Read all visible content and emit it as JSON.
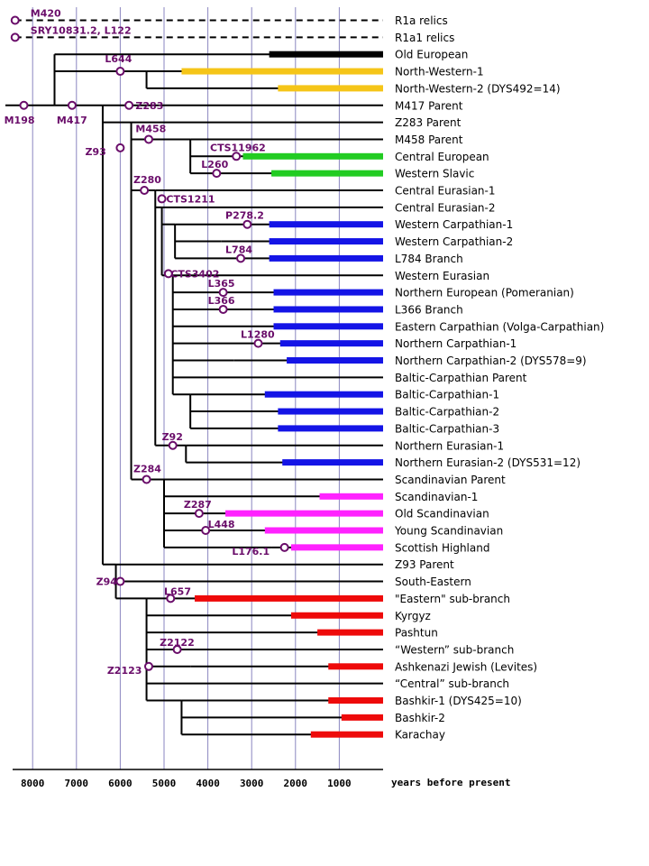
{
  "axis": {
    "unit_label": "years before present",
    "ticks": [
      {
        "value": 8000,
        "label": "8000"
      },
      {
        "value": 7000,
        "label": "7000"
      },
      {
        "value": 6000,
        "label": "6000"
      },
      {
        "value": 5000,
        "label": "5000"
      },
      {
        "value": 4000,
        "label": "4000"
      },
      {
        "value": 3000,
        "label": "3000"
      },
      {
        "value": 2000,
        "label": "2000"
      },
      {
        "value": 1000,
        "label": "1000"
      }
    ]
  },
  "colors": {
    "tree_line": "#000000",
    "mutation_marker": "#6a0d6a",
    "grid": "#8a86c0",
    "black": "#000000",
    "yellow": "#f5c518",
    "green": "#22cc22",
    "blue": "#1414e6",
    "magenta": "#ff22ff",
    "red": "#ee0a0a"
  },
  "branches": [
    {
      "label": "R1a relics",
      "bar": null
    },
    {
      "label": "R1a1 relics",
      "bar": null
    },
    {
      "label": "Old European",
      "bar": {
        "start": 2600,
        "color": "black"
      }
    },
    {
      "label": "North-Western-1",
      "bar": {
        "start": 4600,
        "color": "yellow"
      }
    },
    {
      "label": "North-Western-2 (DYS492=14)",
      "bar": {
        "start": 2400,
        "color": "yellow"
      }
    },
    {
      "label": "M417 Parent",
      "bar": null
    },
    {
      "label": "Z283 Parent",
      "bar": null
    },
    {
      "label": "M458 Parent",
      "bar": null
    },
    {
      "label": "Central European",
      "bar": {
        "start": 3200,
        "color": "green"
      }
    },
    {
      "label": "Western Slavic",
      "bar": {
        "start": 2550,
        "color": "green"
      }
    },
    {
      "label": "Central Eurasian-1",
      "bar": null
    },
    {
      "label": "Central Eurasian-2",
      "bar": null
    },
    {
      "label": "Western Carpathian-1",
      "bar": {
        "start": 2600,
        "color": "blue"
      }
    },
    {
      "label": "Western Carpathian-2",
      "bar": {
        "start": 2600,
        "color": "blue"
      }
    },
    {
      "label": "L784 Branch",
      "bar": {
        "start": 2600,
        "color": "blue"
      }
    },
    {
      "label": "Western Eurasian",
      "bar": null
    },
    {
      "label": "Northern European (Pomeranian)",
      "bar": {
        "start": 2500,
        "color": "blue"
      }
    },
    {
      "label": "L366 Branch",
      "bar": {
        "start": 2500,
        "color": "blue"
      }
    },
    {
      "label": "Eastern Carpathian (Volga-Carpathian)",
      "bar": {
        "start": 2500,
        "color": "blue"
      }
    },
    {
      "label": "Northern Carpathian-1",
      "bar": {
        "start": 2350,
        "color": "blue"
      }
    },
    {
      "label": "Northern Carpathian-2 (DYS578=9)",
      "bar": {
        "start": 2200,
        "color": "blue"
      }
    },
    {
      "label": "Baltic-Carpathian Parent",
      "bar": null
    },
    {
      "label": "Baltic-Carpathian-1",
      "bar": {
        "start": 2700,
        "color": "blue"
      }
    },
    {
      "label": "Baltic-Carpathian-2",
      "bar": {
        "start": 2400,
        "color": "blue"
      }
    },
    {
      "label": "Baltic-Carpathian-3",
      "bar": {
        "start": 2400,
        "color": "blue"
      }
    },
    {
      "label": "Northern Eurasian-1",
      "bar": null
    },
    {
      "label": "Northern Eurasian-2 (DYS531=12)",
      "bar": {
        "start": 2300,
        "color": "blue"
      }
    },
    {
      "label": "Scandinavian Parent",
      "bar": null
    },
    {
      "label": "Scandinavian-1",
      "bar": {
        "start": 1450,
        "color": "magenta"
      }
    },
    {
      "label": "Old Scandinavian",
      "bar": {
        "start": 3600,
        "color": "magenta"
      }
    },
    {
      "label": "Young Scandinavian",
      "bar": {
        "start": 2700,
        "color": "magenta"
      }
    },
    {
      "label": "Scottish Highland",
      "bar": {
        "start": 2100,
        "color": "magenta"
      }
    },
    {
      "label": "Z93 Parent",
      "bar": null
    },
    {
      "label": "South-Eastern",
      "bar": null
    },
    {
      "label": "\"Eastern\" sub-branch",
      "bar": {
        "start": 4300,
        "color": "red"
      }
    },
    {
      "label": "Kyrgyz",
      "bar": {
        "start": 2100,
        "color": "red"
      }
    },
    {
      "label": "Pashtun",
      "bar": {
        "start": 1500,
        "color": "red"
      }
    },
    {
      "label": "“Western” sub-branch",
      "bar": null
    },
    {
      "label": "Ashkenazi Jewish (Levites)",
      "bar": {
        "start": 1250,
        "color": "red"
      }
    },
    {
      "label": "“Central” sub-branch",
      "bar": null
    },
    {
      "label": "Bashkir-1 (DYS425=10)",
      "bar": {
        "start": 1250,
        "color": "red"
      }
    },
    {
      "label": "Bashkir-2",
      "bar": {
        "start": 950,
        "color": "red"
      }
    },
    {
      "label": "Karachay",
      "bar": {
        "start": 1650,
        "color": "red"
      }
    }
  ],
  "tree": {
    "root": 8400,
    "nodes": [
      {
        "id": "m198",
        "year": 8400,
        "parent": null
      },
      {
        "id": "r1a",
        "year": 8400,
        "parent": null,
        "child_rows": [
          0
        ]
      },
      {
        "id": "r1a1",
        "year": 8400,
        "parent": null,
        "child_rows": [
          1
        ]
      },
      {
        "id": "m417",
        "year": 7500,
        "parent": "m198"
      },
      {
        "id": "oldeu",
        "year": 7500,
        "parent": "m417",
        "child_rows": [
          2
        ]
      },
      {
        "id": "nw",
        "year": 5400,
        "parent": "m417",
        "child_rows": [
          3,
          4
        ]
      },
      {
        "id": "main",
        "year": 6400,
        "parent": "m417",
        "child_rows": [
          5
        ]
      },
      {
        "id": "z283",
        "year": 5750,
        "parent": "main",
        "child_rows": [
          6
        ]
      },
      {
        "id": "m458",
        "year": 4400,
        "parent": "z283",
        "child_rows": [
          7,
          8,
          9
        ]
      },
      {
        "id": "z280",
        "year": 5200,
        "parent": "z283",
        "child_rows": [
          10
        ]
      },
      {
        "id": "ce2",
        "year": 5050,
        "parent": "z280",
        "child_rows": [
          11
        ]
      },
      {
        "id": "wc",
        "year": 4750,
        "parent": "ce2",
        "child_rows": [
          12,
          14
        ]
      },
      {
        "id": "wc2",
        "year": 3700,
        "parent": "wc",
        "child_rows": [
          13
        ]
      },
      {
        "id": "we",
        "year": 4800,
        "parent": "ce2",
        "child_rows": [
          15,
          16,
          17,
          18,
          19,
          21
        ]
      },
      {
        "id": "nc2",
        "year": 3400,
        "parent": "we",
        "child_rows": [
          20
        ]
      },
      {
        "id": "bc",
        "year": 4400,
        "parent": "we",
        "child_rows": [
          22,
          23,
          24
        ]
      },
      {
        "id": "ne",
        "year": 4500,
        "parent": "z280",
        "child_rows": [
          25,
          26
        ]
      },
      {
        "id": "z284",
        "year": 5000,
        "parent": "z283",
        "child_rows": [
          27,
          28,
          29,
          30
        ]
      },
      {
        "id": "sh",
        "year": 2550,
        "parent": "z284",
        "child_rows": [
          31
        ]
      },
      {
        "id": "z93",
        "year": 6100,
        "parent": "main",
        "child_rows": [
          32,
          33
        ]
      },
      {
        "id": "z94",
        "year": 5400,
        "parent": "z93",
        "child_rows": [
          34,
          35,
          36,
          37,
          39
        ]
      },
      {
        "id": "west",
        "year": 4400,
        "parent": "z94",
        "child_rows": [
          38
        ]
      },
      {
        "id": "central",
        "year": 4600,
        "parent": "z94",
        "child_rows": [
          40,
          41,
          42
        ]
      }
    ]
  },
  "mutations": [
    {
      "label": "M420",
      "year": 8400,
      "row": 0,
      "label_year": 8050,
      "label_dy": -8
    },
    {
      "label": "SRY10831.2, L122",
      "year": 8400,
      "row": 1,
      "label_year": 8050,
      "label_dy": -8
    },
    {
      "label": "L644",
      "year": 6000,
      "row": 3,
      "label_year": 6350,
      "label_dy": -14
    },
    {
      "label": "M198",
      "year": 8200,
      "row": 5,
      "label_year": 8650,
      "label_dy": 16
    },
    {
      "label": "M417",
      "year": 7100,
      "row": 5,
      "label_year": 7450,
      "label_dy": 16
    },
    {
      "label": "Z283",
      "year": 5800,
      "row": 5,
      "label_year": 5650,
      "label_dy": 0
    },
    {
      "label": "M458",
      "year": 5350,
      "row": 7,
      "label_year": 5650,
      "label_dy": -12
    },
    {
      "label": "Z93",
      "year": 6000,
      "row": 7.5,
      "label_year": 6800,
      "label_dy": 4
    },
    {
      "label": "CTS11962",
      "year": 3350,
      "row": 8,
      "label_year": 3950,
      "label_dy": -10
    },
    {
      "label": "L260",
      "year": 3800,
      "row": 9,
      "label_year": 4150,
      "label_dy": -10
    },
    {
      "label": "Z280",
      "year": 5450,
      "row": 10,
      "label_year": 5700,
      "label_dy": -12
    },
    {
      "label": "CTS1211",
      "year": 5050,
      "row": 10.5,
      "label_year": 4950,
      "label_dy": 0
    },
    {
      "label": "P278.2",
      "year": 3100,
      "row": 12,
      "label_year": 3600,
      "label_dy": -10
    },
    {
      "label": "L784",
      "year": 3250,
      "row": 14,
      "label_year": 3600,
      "label_dy": -10
    },
    {
      "label": "CTS3402",
      "year": 4900,
      "row": 14.9,
      "label_year": 4850,
      "label_dy": 0
    },
    {
      "label": "L365",
      "year": 3650,
      "row": 16,
      "label_year": 4000,
      "label_dy": -10
    },
    {
      "label": "L366",
      "year": 3650,
      "row": 17,
      "label_year": 4000,
      "label_dy": -10
    },
    {
      "label": "L1280",
      "year": 2850,
      "row": 19,
      "label_year": 3250,
      "label_dy": -10
    },
    {
      "label": "Z92",
      "year": 4800,
      "row": 25,
      "label_year": 5050,
      "label_dy": -10
    },
    {
      "label": "Z284",
      "year": 5400,
      "row": 27,
      "label_year": 5700,
      "label_dy": -12
    },
    {
      "label": "Z287",
      "year": 4200,
      "row": 29,
      "label_year": 4550,
      "label_dy": -10
    },
    {
      "label": "L448",
      "year": 4050,
      "row": 30,
      "label_year": 4000,
      "label_dy": -7
    },
    {
      "label": "L176.1",
      "year": 2250,
      "row": 31,
      "label_year": 3450,
      "label_dy": 4
    },
    {
      "label": "Z94",
      "year": 6000,
      "row": 33,
      "label_year": 6550,
      "label_dy": 0
    },
    {
      "label": "L657",
      "year": 4850,
      "row": 34,
      "label_year": 5000,
      "label_dy": -8
    },
    {
      "label": "Z2122",
      "year": 4700,
      "row": 37,
      "label_year": 5100,
      "label_dy": -8
    },
    {
      "label": "Z2123",
      "year": 5350,
      "row": 38,
      "label_year": 6300,
      "label_dy": 4
    }
  ]
}
